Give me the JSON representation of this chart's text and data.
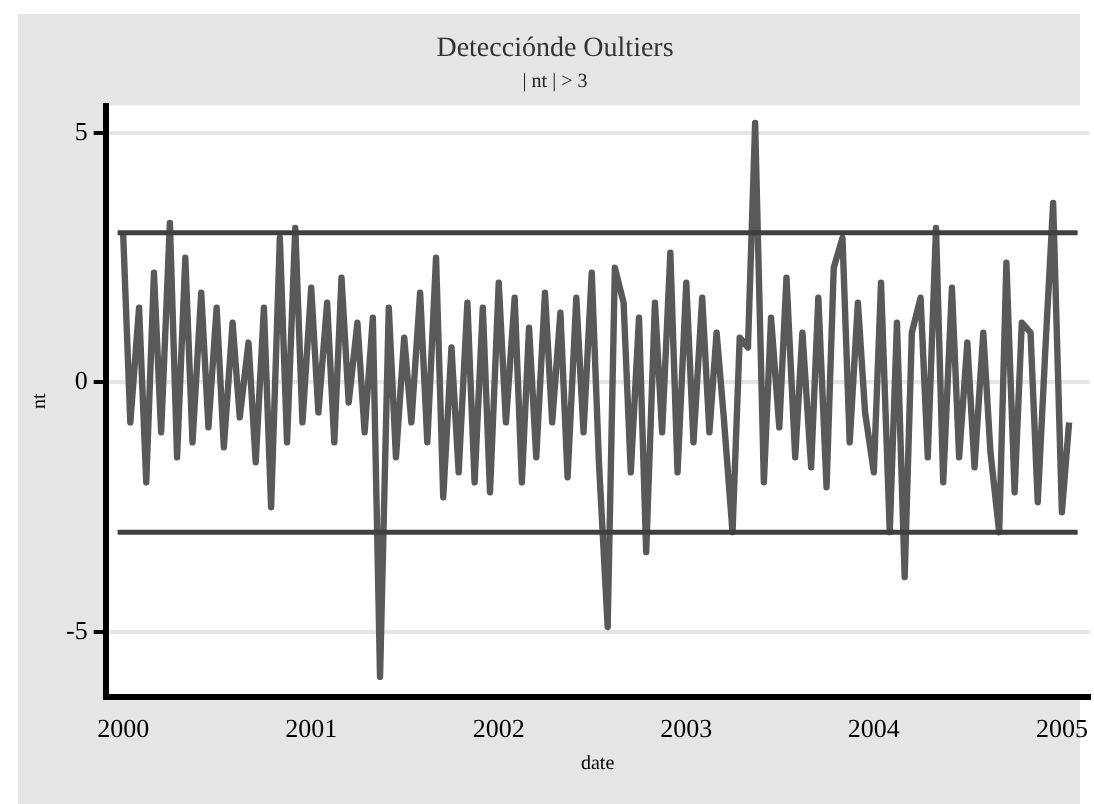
{
  "chart_data": {
    "type": "line",
    "title": "Detecciónde Oultiers",
    "subtitle": "| nt | > 3",
    "xlabel": "date",
    "ylabel": "nt",
    "x": [
      "2000-01-01",
      "2000-01-15",
      "2000-02-01",
      "2000-02-15",
      "2000-03-01",
      "2000-03-15",
      "2000-04-01",
      "2000-04-15",
      "2000-05-01",
      "2000-05-15",
      "2000-06-01",
      "2000-06-15",
      "2000-07-01",
      "2000-07-15",
      "2000-08-01",
      "2000-08-15",
      "2000-09-01",
      "2000-09-15",
      "2000-10-01",
      "2000-10-15",
      "2000-11-01",
      "2000-11-15",
      "2000-12-01",
      "2000-12-15",
      "2001-01-01",
      "2001-01-15",
      "2001-02-01",
      "2001-02-15",
      "2001-03-01",
      "2001-03-15",
      "2001-04-01",
      "2001-04-15",
      "2001-05-01",
      "2001-05-15",
      "2001-06-01",
      "2001-06-15",
      "2001-07-01",
      "2001-07-15",
      "2001-08-01",
      "2001-08-15",
      "2001-09-01",
      "2001-09-15",
      "2001-10-01",
      "2001-10-15",
      "2001-11-01",
      "2001-11-15",
      "2001-12-01",
      "2001-12-15",
      "2002-01-01",
      "2002-01-15",
      "2002-02-01",
      "2002-02-15",
      "2002-03-01",
      "2002-03-15",
      "2002-04-01",
      "2002-04-15",
      "2002-05-01",
      "2002-05-15",
      "2002-06-01",
      "2002-06-15",
      "2002-07-01",
      "2002-07-15",
      "2002-08-01",
      "2002-08-15",
      "2002-09-01",
      "2002-09-15",
      "2002-10-01",
      "2002-10-15",
      "2002-11-01",
      "2002-11-15",
      "2002-12-01",
      "2002-12-15",
      "2003-01-01",
      "2003-01-15",
      "2003-02-01",
      "2003-02-15",
      "2003-03-01",
      "2003-03-15",
      "2003-04-01",
      "2003-04-15",
      "2003-05-01",
      "2003-05-15",
      "2003-06-01",
      "2003-06-15",
      "2003-07-01",
      "2003-07-15",
      "2003-08-01",
      "2003-08-15",
      "2003-09-01",
      "2003-09-15",
      "2003-10-01",
      "2003-10-15",
      "2003-11-01",
      "2003-11-15",
      "2003-12-01",
      "2003-12-15",
      "2004-01-01",
      "2004-01-15",
      "2004-02-01",
      "2004-02-15",
      "2004-03-01",
      "2004-03-15",
      "2004-04-01",
      "2004-04-15",
      "2004-05-01",
      "2004-05-15",
      "2004-06-01",
      "2004-06-15",
      "2004-07-01",
      "2004-07-15",
      "2004-08-01",
      "2004-08-15",
      "2004-09-01",
      "2004-09-15",
      "2004-10-01",
      "2004-10-15",
      "2004-11-01",
      "2004-11-15",
      "2004-12-01",
      "2004-12-15",
      "2005-01-01",
      "2005-01-15"
    ],
    "series": [
      {
        "color": "#595959",
        "values": [
          3.0,
          -0.8,
          1.5,
          -2.0,
          2.2,
          -1.0,
          3.2,
          -1.5,
          2.5,
          -1.2,
          1.8,
          -0.9,
          1.5,
          -1.3,
          1.2,
          -0.7,
          0.8,
          -1.6,
          1.5,
          -2.5,
          2.9,
          -1.2,
          3.1,
          -0.8,
          1.9,
          -0.6,
          1.6,
          -1.2,
          2.1,
          -0.4,
          1.2,
          -1.0,
          1.3,
          -5.9,
          1.5,
          -1.5,
          0.9,
          -0.8,
          1.8,
          -1.2,
          2.5,
          -2.3,
          0.7,
          -1.8,
          1.6,
          -2.0,
          1.5,
          -2.2,
          2.0,
          -0.8,
          1.7,
          -2.0,
          1.1,
          -1.5,
          1.8,
          -0.8,
          1.4,
          -1.9,
          1.7,
          -1.0,
          2.2,
          -1.6,
          -4.9,
          2.3,
          1.6,
          -1.8,
          1.3,
          -3.4,
          1.6,
          -1.0,
          2.6,
          -1.8,
          2.0,
          -1.2,
          1.7,
          -1.0,
          1.0,
          -0.7,
          -3.0,
          0.9,
          0.7,
          5.2,
          -2.0,
          1.3,
          -0.9,
          2.1,
          -1.5,
          1.0,
          -1.7,
          1.7,
          -2.1,
          2.3,
          2.9,
          -1.2,
          1.6,
          -0.6,
          -1.8,
          2.0,
          -3.0,
          1.2,
          -3.9,
          1.0,
          1.7,
          -1.5,
          3.1,
          -2.0,
          1.9,
          -1.5,
          0.8,
          -1.7,
          1.0,
          -1.4,
          -3.0,
          2.4,
          -2.2,
          1.2,
          1.0,
          -2.4,
          0.9,
          3.6,
          -2.6,
          -0.8
        ]
      }
    ],
    "ref_lines": [
      {
        "axis": "y",
        "value": 3,
        "color": "#3f3f3f"
      },
      {
        "axis": "y",
        "value": -3,
        "color": "#3f3f3f"
      }
    ],
    "xlim": [
      "1999-11-28",
      "2005-02-24"
    ],
    "xticks": [
      "2000",
      "2001",
      "2002",
      "2003",
      "2004",
      "2005"
    ],
    "ylim": [
      -6.3,
      5.55
    ],
    "yticks": [
      -5,
      0,
      5
    ],
    "grid": "y",
    "legend": false,
    "marker": "none",
    "line_style": "solid"
  }
}
